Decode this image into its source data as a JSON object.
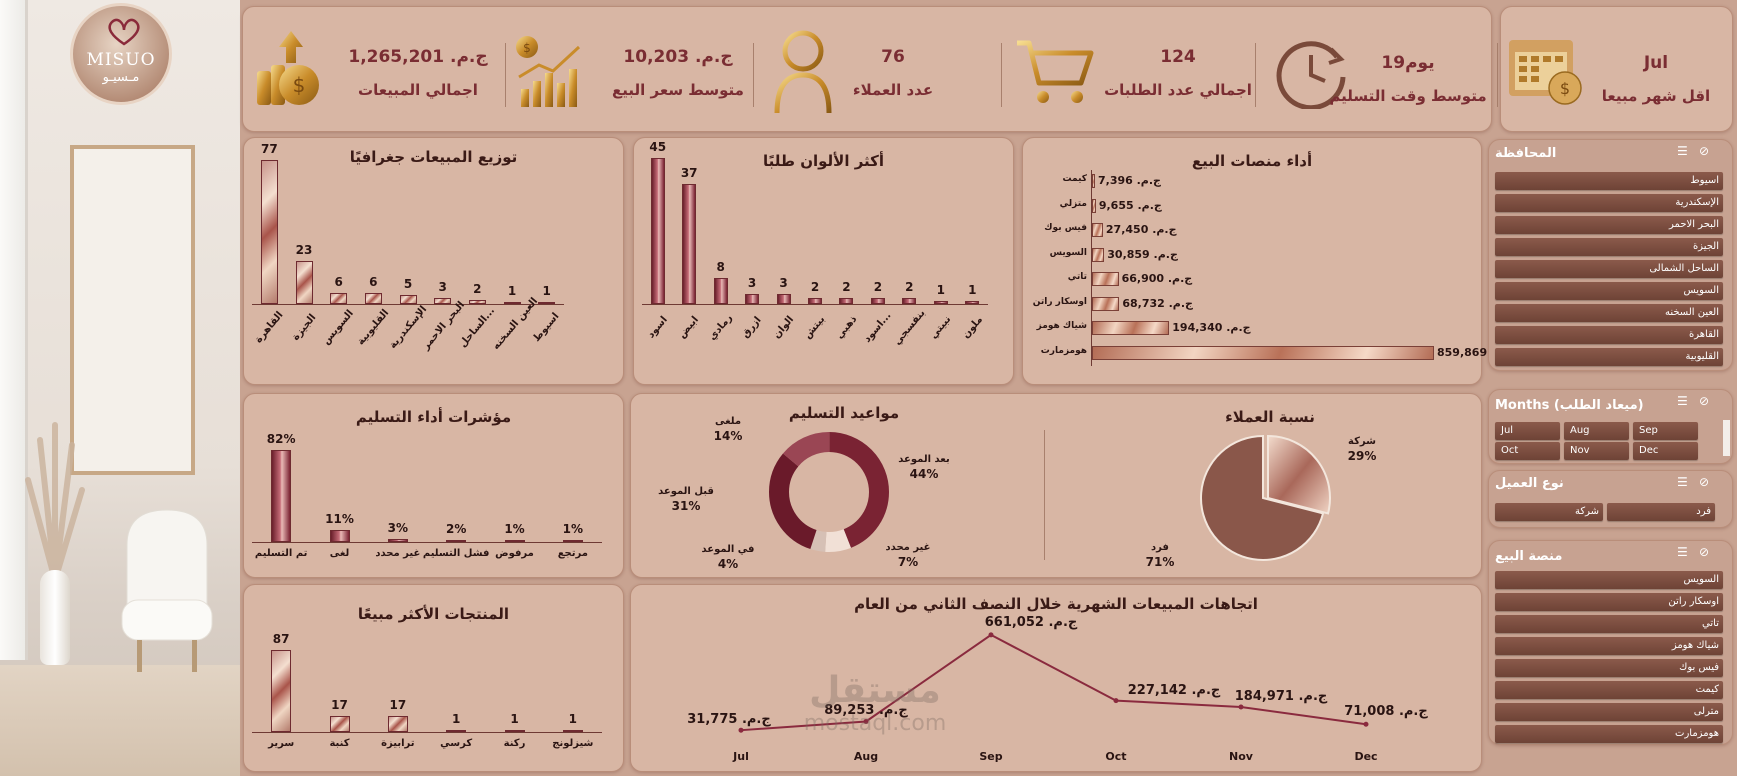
{
  "logo": {
    "brand": "MISUO",
    "brand_ar": "مـسيـو"
  },
  "kpis": [
    {
      "value": "ج.م. 1,265,201",
      "label": "اجمالي المبيعات",
      "icon": "coins-dollar-icon"
    },
    {
      "value": "ج.م. 10,203",
      "label": "متوسط سعر البيع",
      "icon": "price-growth-chart-icon"
    },
    {
      "value": "76",
      "label": "عدد العملاء",
      "icon": "user-icon"
    },
    {
      "value": "124",
      "label": "اجمالي عدد الطلبات",
      "icon": "shopping-cart-icon"
    },
    {
      "value": "يوم19",
      "label": "متوسط وقت التسليم",
      "icon": "clock-arrow-icon"
    },
    {
      "value": "Jul",
      "label": "اقل شهر مبيعا",
      "icon": "calendar-dollar-icon"
    }
  ],
  "geo": {
    "title": "توزيع المبيعات جغرافيًا",
    "chart_data": {
      "type": "bar",
      "categories": [
        "القاهرة",
        "الجيزة",
        "السويس",
        "القليوبية",
        "الإسكندرية",
        "البحر الاحمر",
        "الساحل...",
        "العين السخنه",
        "اسيوط"
      ],
      "values": [
        77,
        23,
        6,
        6,
        5,
        3,
        2,
        1,
        1
      ]
    }
  },
  "colors": {
    "title": "أكثر الألوان طلبًا",
    "chart_data": {
      "type": "bar",
      "categories": [
        "اسود",
        "ابيض",
        "رمادي",
        "ازرق",
        "الوان",
        "بيتش",
        "ذهبي",
        "اسود...",
        "بنفسجي",
        "نبيتي",
        "ملون"
      ],
      "values": [
        45,
        37,
        8,
        3,
        3,
        2,
        2,
        2,
        2,
        1,
        1
      ]
    }
  },
  "platforms": {
    "title": "أداء منصات البيع",
    "chart_data": {
      "type": "bar",
      "orientation": "horizontal",
      "categories": [
        "كيمت",
        "متزلي",
        "فيس بوك",
        "السويس",
        "تاتي",
        "اوسكار راتن",
        "شياك هومز",
        "هومزمارت"
      ],
      "values": [
        7396,
        9655,
        27450,
        30859,
        66900,
        68732,
        194340,
        859869
      ],
      "labels": [
        "ج.م. 7,396",
        "ج.م. 9,655",
        "ج.م. 27,450",
        "ج.م. 30,859",
        "ج.م. 66,900",
        "ج.م. 68,732",
        "ج.م. 194,340",
        "ج.م. 859,869"
      ]
    }
  },
  "delivery_kpi": {
    "title": "مؤشرات أداء التسليم",
    "chart_data": {
      "type": "bar",
      "categories": [
        "تم التسليم",
        "لغى",
        "غير محدد",
        "فشل التسليم",
        "مرفوض",
        "مرتجع"
      ],
      "values": [
        82,
        11,
        3,
        2,
        1,
        1
      ],
      "labels": [
        "82%",
        "11%",
        "3%",
        "2%",
        "1%",
        "1%"
      ]
    }
  },
  "schedule": {
    "title": "مواعيد التسليم",
    "chart_data": {
      "type": "pie",
      "style": "donut",
      "slices": [
        {
          "label": "بعد الموعد",
          "pct": 44,
          "text": "44%",
          "color": "#7a2333"
        },
        {
          "label": "غير محدد",
          "pct": 7,
          "text": "7%",
          "color": "#f1e0d6"
        },
        {
          "label": "في الموعد",
          "pct": 4,
          "text": "4%",
          "color": "#d6c0b5"
        },
        {
          "label": "قبل الموعد",
          "pct": 31,
          "text": "31%",
          "color": "#6a1a2a"
        },
        {
          "label": "ملغى",
          "pct": 14,
          "text": "14%",
          "color": "#9a4654"
        }
      ]
    }
  },
  "customers": {
    "title": "نسبة العملاء",
    "chart_data": {
      "type": "pie",
      "slices": [
        {
          "label": "شركة",
          "pct": 29,
          "text": "29%"
        },
        {
          "label": "فرد",
          "pct": 71,
          "text": "71%"
        }
      ]
    }
  },
  "top_products": {
    "title": "المنتجات الأكثر مبيعًا",
    "chart_data": {
      "type": "bar",
      "categories": [
        "سرير",
        "كنبة",
        "ترابيزة",
        "كرسي",
        "ركنة",
        "شيزلونج"
      ],
      "values": [
        87,
        17,
        17,
        1,
        1,
        1
      ]
    }
  },
  "trend": {
    "title": "اتجاهات المبيعات الشهرية خلال النصف الثاني من العام",
    "chart_data": {
      "type": "line",
      "x": [
        "Jul",
        "Aug",
        "Sep",
        "Oct",
        "Nov",
        "Dec"
      ],
      "values": [
        31775,
        89253,
        661052,
        227142,
        184971,
        71008
      ],
      "labels": [
        "ج.م. 31,775",
        "ج.م. 89,253",
        "ج.م. 661,052",
        "ج.م. 227,142",
        "ج.م. 184,971",
        "ج.م. 71,008"
      ]
    }
  },
  "slicers": {
    "governorate": {
      "title": "المحافظة",
      "items": [
        "اسيوط",
        "الإسكندرية",
        "البحر الاحمر",
        "الجيزة",
        "الساحل الشمالى",
        "السويس",
        "العين السخنه",
        "القاهرة",
        "القليوبية"
      ]
    },
    "months": {
      "title": "Months (ميعاد الطلب)",
      "items": [
        "Jul",
        "Aug",
        "Sep",
        "Oct",
        "Nov",
        "Dec"
      ]
    },
    "customer_type": {
      "title": "نوع العميل",
      "items": [
        "شركة",
        "فرد"
      ]
    },
    "platform": {
      "title": "منصة البيع",
      "items": [
        "السويس",
        "اوسكار راتن",
        "تاتي",
        "شياك هومز",
        "فيس بوك",
        "كيمت",
        "مترلى",
        "هومزمارت"
      ]
    }
  },
  "watermark": {
    "line1": "مستقل",
    "line2": "mostaql.com"
  }
}
